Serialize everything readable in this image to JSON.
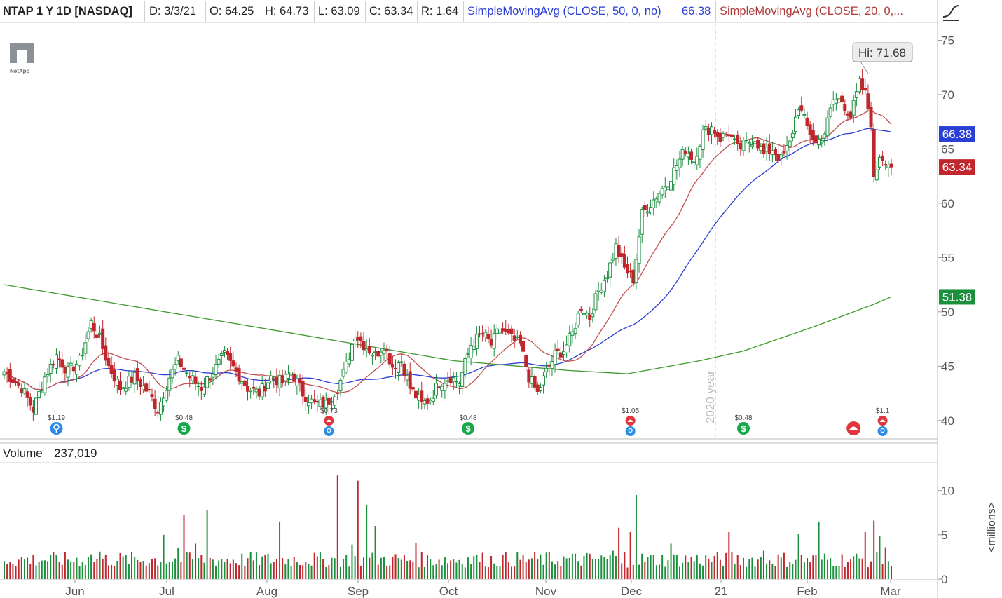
{
  "header": {
    "symbol": "NTAP 1 Y 1D [NASDAQ]",
    "date": "D: 3/3/21",
    "open": "O: 64.25",
    "high": "H: 64.73",
    "low": "L: 63.09",
    "close": "C: 63.34",
    "range": "R: 1.64",
    "sma50_label": "SimpleMovingAvg (CLOSE, 50, 0, no)",
    "sma50_value": "66.38",
    "sma20_label": "SimpleMovingAvg (CLOSE, 20, 0,..."
  },
  "logo": {
    "text": "NetApp"
  },
  "volume_header": {
    "label": "Volume",
    "value": "237,019"
  },
  "units_label": "<millions>",
  "colors": {
    "up": "#1a8f3c",
    "down": "#c0262c",
    "sma20": "#c0504d",
    "sma50": "#2a3fd6",
    "sma200": "#3e9a2e"
  },
  "chart_data": {
    "type": "candlestick",
    "title": "NTAP 1 Y 1D [NASDAQ]",
    "x_ticks": [
      "Jun",
      "Jul",
      "Aug",
      "Sep",
      "Oct",
      "Nov",
      "Dec",
      "21",
      "Feb",
      "Mar"
    ],
    "y_ticks": [
      40,
      45,
      50,
      55,
      60,
      65,
      70,
      75
    ],
    "ylim": [
      38.5,
      76
    ],
    "volume_ticks": [
      "0",
      "5",
      "10"
    ],
    "volume_ylim": [
      0,
      12.5
    ],
    "hi_label": "Hi: 71.68",
    "price_tags": [
      {
        "name": "SMA50",
        "value": "66.38",
        "color": "#2a3fd6"
      },
      {
        "name": "Close",
        "value": "63.34",
        "color": "#c0262c"
      },
      {
        "name": "SMA200",
        "value": "51.38",
        "color": "#1a8f3c"
      }
    ],
    "year_marker": "2020 year",
    "events": [
      {
        "label": "$1.19",
        "kind": "earnings",
        "icon": "bulb",
        "date_index": 18
      },
      {
        "label": "$0.48",
        "kind": "dividend",
        "icon": "dollar",
        "date_index": 62
      },
      {
        "label": "$0.73",
        "kind": "conference",
        "icon": "phone-bulb",
        "date_index": 112
      },
      {
        "label": "$0.48",
        "kind": "dividend",
        "icon": "dollar",
        "date_index": 160
      },
      {
        "label": "$1.05",
        "kind": "conference",
        "icon": "phone-bulb",
        "date_index": 216
      },
      {
        "label": "$0.48",
        "kind": "dividend",
        "icon": "dollar",
        "date_index": 255
      },
      {
        "label": "",
        "kind": "conference",
        "icon": "phone",
        "date_index": 293
      },
      {
        "label": "$1.1",
        "kind": "conference",
        "icon": "phone-bulb",
        "date_index": 303
      }
    ],
    "anchors": [
      [
        0,
        44.5
      ],
      [
        6,
        43.0
      ],
      [
        10,
        41.0
      ],
      [
        14,
        44.0
      ],
      [
        18,
        46.0
      ],
      [
        22,
        44.5
      ],
      [
        26,
        45.5
      ],
      [
        30,
        49.0
      ],
      [
        33,
        47.5
      ],
      [
        36,
        45.0
      ],
      [
        40,
        43.0
      ],
      [
        45,
        44.0
      ],
      [
        50,
        42.5
      ],
      [
        53,
        41.0
      ],
      [
        57,
        44.0
      ],
      [
        60,
        45.5
      ],
      [
        64,
        44.0
      ],
      [
        68,
        43.0
      ],
      [
        72,
        44.5
      ],
      [
        76,
        46.0
      ],
      [
        80,
        44.5
      ],
      [
        84,
        43.0
      ],
      [
        88,
        42.5
      ],
      [
        92,
        44.0
      ],
      [
        96,
        43.5
      ],
      [
        99,
        44.5
      ],
      [
        103,
        42.5
      ],
      [
        107,
        41.5
      ],
      [
        111,
        41.5
      ],
      [
        115,
        43.0
      ],
      [
        118,
        45.0
      ],
      [
        121,
        48.0
      ],
      [
        124,
        47.0
      ],
      [
        128,
        46.0
      ],
      [
        131,
        47.0
      ],
      [
        134,
        45.0
      ],
      [
        137,
        45.5
      ],
      [
        140,
        43.0
      ],
      [
        144,
        41.5
      ],
      [
        147,
        42.0
      ],
      [
        150,
        43.5
      ],
      [
        154,
        44.0
      ],
      [
        157,
        43.5
      ],
      [
        161,
        47.0
      ],
      [
        165,
        48.0
      ],
      [
        168,
        47.0
      ],
      [
        171,
        48.5
      ],
      [
        175,
        47.5
      ],
      [
        178,
        47.0
      ],
      [
        181,
        44.0
      ],
      [
        184,
        42.5
      ],
      [
        187,
        44.5
      ],
      [
        190,
        46.0
      ],
      [
        193,
        46.5
      ],
      [
        196,
        48.0
      ],
      [
        199,
        50.5
      ],
      [
        202,
        49.5
      ],
      [
        205,
        52.0
      ],
      [
        208,
        53.5
      ],
      [
        211,
        56.0
      ],
      [
        214,
        54.0
      ],
      [
        217,
        53.0
      ],
      [
        220,
        59.0
      ],
      [
        223,
        60.0
      ],
      [
        226,
        61.0
      ],
      [
        229,
        62.0
      ],
      [
        232,
        63.5
      ],
      [
        235,
        65.0
      ],
      [
        238,
        64.0
      ],
      [
        241,
        66.5
      ],
      [
        244,
        67.0
      ],
      [
        247,
        66.0
      ],
      [
        250,
        66.5
      ],
      [
        253,
        65.0
      ],
      [
        256,
        65.5
      ],
      [
        259,
        66.0
      ],
      [
        262,
        64.5
      ],
      [
        265,
        65.0
      ],
      [
        268,
        64.0
      ],
      [
        271,
        65.5
      ],
      [
        274,
        69.0
      ],
      [
        277,
        67.0
      ],
      [
        280,
        65.5
      ],
      [
        283,
        66.5
      ],
      [
        286,
        69.5
      ],
      [
        289,
        69.5
      ],
      [
        292,
        68.0
      ],
      [
        295,
        71.0
      ],
      [
        297,
        70.0
      ],
      [
        299,
        67.5
      ],
      [
        300,
        62.0
      ],
      [
        302,
        64.5
      ],
      [
        304,
        64.0
      ],
      [
        306,
        63.34
      ]
    ],
    "candle_count": 307,
    "candle_x_range": [
      6,
      1272
    ],
    "high_index": 298,
    "sma200": [
      [
        0,
        52.5
      ],
      [
        100,
        48.0
      ],
      [
        155,
        45.5
      ],
      [
        195,
        44.6
      ],
      [
        215,
        44.3
      ],
      [
        240,
        45.5
      ],
      [
        255,
        46.4
      ],
      [
        280,
        48.7
      ],
      [
        300,
        50.7
      ],
      [
        306,
        51.38
      ]
    ]
  }
}
